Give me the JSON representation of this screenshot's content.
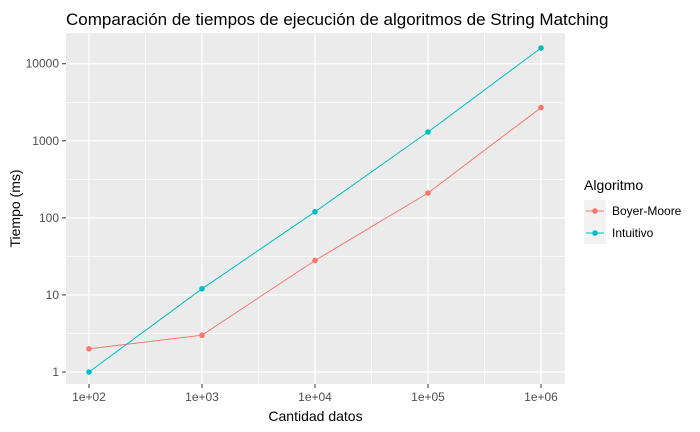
{
  "chart_data": {
    "type": "line",
    "title": "Comparación de tiempos de ejecución de algoritmos de String Matching",
    "xlabel": "Cantidad datos",
    "ylabel": "Tiempo (ms)",
    "x_scale": "log10",
    "y_scale": "log10",
    "x": [
      100,
      1000,
      10000,
      100000,
      1000000
    ],
    "x_tick_labels": [
      "1e+02",
      "1e+03",
      "1e+04",
      "1e+05",
      "1e+06"
    ],
    "y_ticks": [
      1,
      10,
      100,
      1000,
      10000
    ],
    "y_tick_labels": [
      "1",
      "10",
      "100",
      "1000",
      "10000"
    ],
    "xlim": [
      100,
      1000000
    ],
    "ylim": [
      1,
      16000
    ],
    "grid": true,
    "legend_title": "Algoritmo",
    "legend_position": "right",
    "series": [
      {
        "name": "Boyer-Moore",
        "color": "#F8766D",
        "values": [
          2,
          3,
          28,
          210,
          2700
        ]
      },
      {
        "name": "Intuitivo",
        "color": "#00BFC4",
        "values": [
          1,
          12,
          120,
          1300,
          16000
        ]
      }
    ],
    "panel_background": "#EBEBEB",
    "gridline_color": "#FFFFFF"
  }
}
